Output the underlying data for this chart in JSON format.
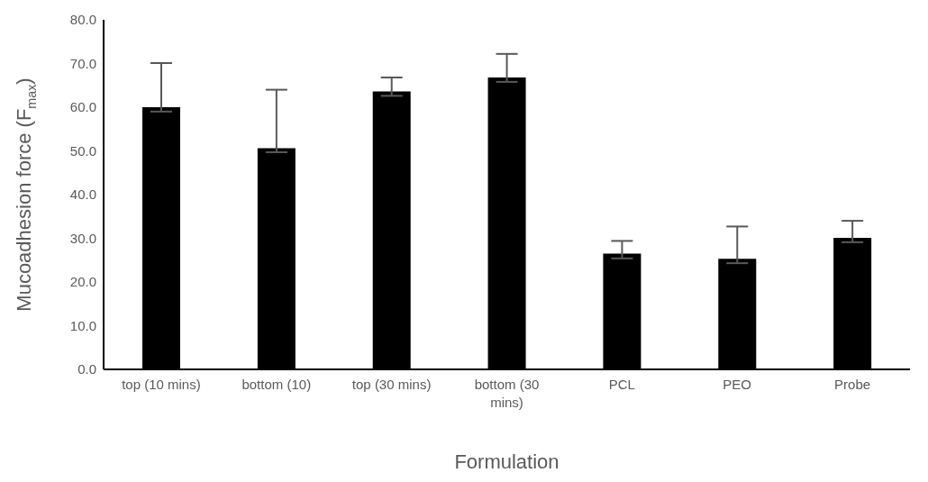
{
  "chart_data": {
    "type": "bar",
    "categories": [
      "top (10 mins)",
      "bottom (10)",
      "top (30 mins)",
      "bottom (30 mins)",
      "PCL",
      "PEO",
      "Probe"
    ],
    "values": [
      60.0,
      50.6,
      63.6,
      66.8,
      26.5,
      25.3,
      30.1
    ],
    "errors": [
      [
        59.0,
        70.1
      ],
      [
        49.7,
        64.0
      ],
      [
        62.6,
        66.8
      ],
      [
        65.8,
        72.2
      ],
      [
        25.4,
        29.4
      ],
      [
        24.3,
        32.7
      ],
      [
        29.1,
        34.0
      ]
    ],
    "color": "#000000",
    "xlabel": "Formulation",
    "ylabel": "Mucoadhesion force (F$_{max}$)",
    "ylim": [
      0,
      80
    ],
    "yticks": [
      {
        "value": 0,
        "label": "0.0"
      },
      {
        "value": 10,
        "label": "10.0"
      },
      {
        "value": 20,
        "label": "20.0"
      },
      {
        "value": 30,
        "label": "30.0"
      },
      {
        "value": 40,
        "label": "40.0"
      },
      {
        "value": 50,
        "label": "50.0"
      },
      {
        "value": 60,
        "label": "60.0"
      },
      {
        "value": 70,
        "label": "70.0"
      },
      {
        "value": 80,
        "label": "80.0"
      }
    ],
    "grid": false,
    "legend": false
  }
}
